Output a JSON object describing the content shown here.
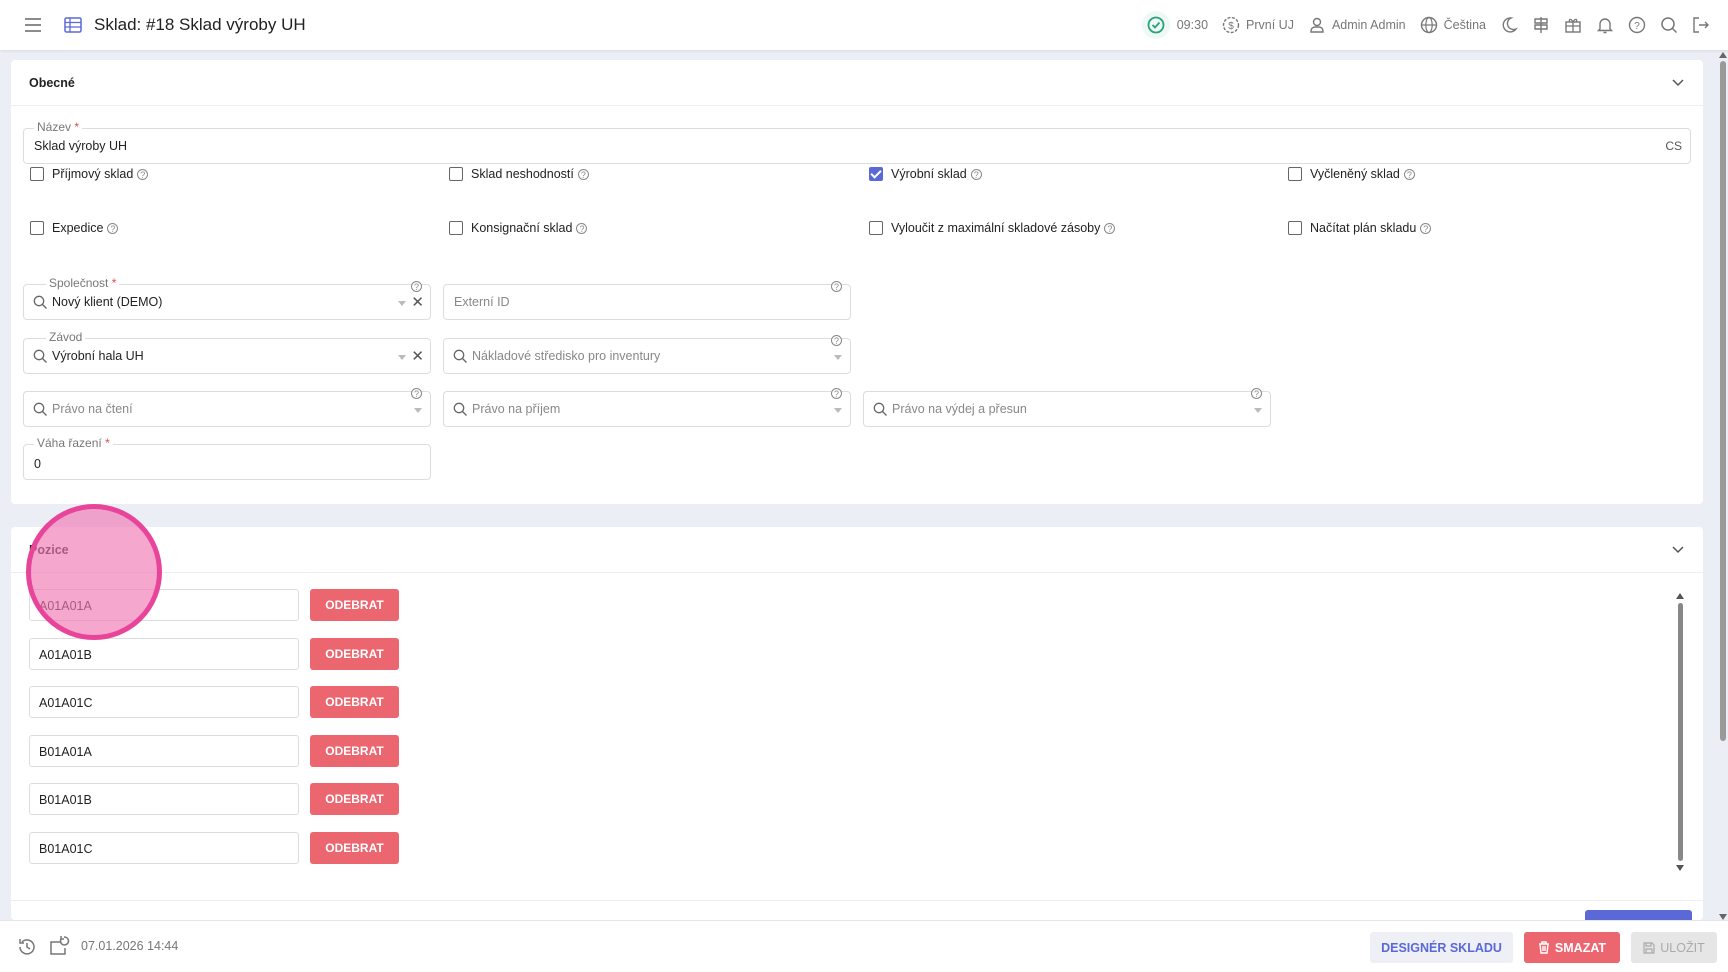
{
  "header": {
    "title": "Sklad: #18 Sklad výroby UH",
    "time": "09:30",
    "company": "První UJ",
    "user": "Admin Admin",
    "language": "Čeština"
  },
  "general": {
    "title": "Obecné",
    "name": {
      "label": "Název",
      "value": "Sklad výroby UH",
      "lang": "CS"
    },
    "checkboxes": [
      {
        "label": "Příjmový sklad",
        "checked": false
      },
      {
        "label": "Sklad neshodností",
        "checked": false
      },
      {
        "label": "Výrobní sklad",
        "checked": true
      },
      {
        "label": "Vyčleněný sklad",
        "checked": false
      },
      {
        "label": "Expedice",
        "checked": false
      },
      {
        "label": "Konsignační sklad",
        "checked": false
      },
      {
        "label": "Vyloučit z maximální skladové zásoby",
        "checked": false
      },
      {
        "label": "Načítat plán skladu",
        "checked": false
      }
    ],
    "company": {
      "label": "Společnost",
      "value": "Nový klient (DEMO)"
    },
    "external_id": {
      "placeholder": "Externí ID"
    },
    "plant": {
      "label": "Závod",
      "value": "Výrobní hala UH"
    },
    "cost_center": {
      "placeholder": "Nákladové středisko pro inventury"
    },
    "read_right": {
      "placeholder": "Právo na čtení"
    },
    "receive_right": {
      "placeholder": "Právo na příjem"
    },
    "issue_right": {
      "placeholder": "Právo na výdej a přesun"
    },
    "sort_weight": {
      "label": "Váha řazení",
      "value": "0"
    }
  },
  "positions": {
    "title": "Pozice",
    "remove_label": "ODEBRAT",
    "items": [
      "A01A01A",
      "A01A01B",
      "A01A01C",
      "B01A01A",
      "B01A01B",
      "B01A01C"
    ]
  },
  "footer": {
    "timestamp": "07.01.2026 14:44",
    "designer": "DESIGNÉR SKLADU",
    "delete": "SMAZAT",
    "save": "ULOŽIT"
  },
  "colors": {
    "accent": "#5a68d8",
    "danger": "#ec6670",
    "touch": "#e8449a"
  }
}
